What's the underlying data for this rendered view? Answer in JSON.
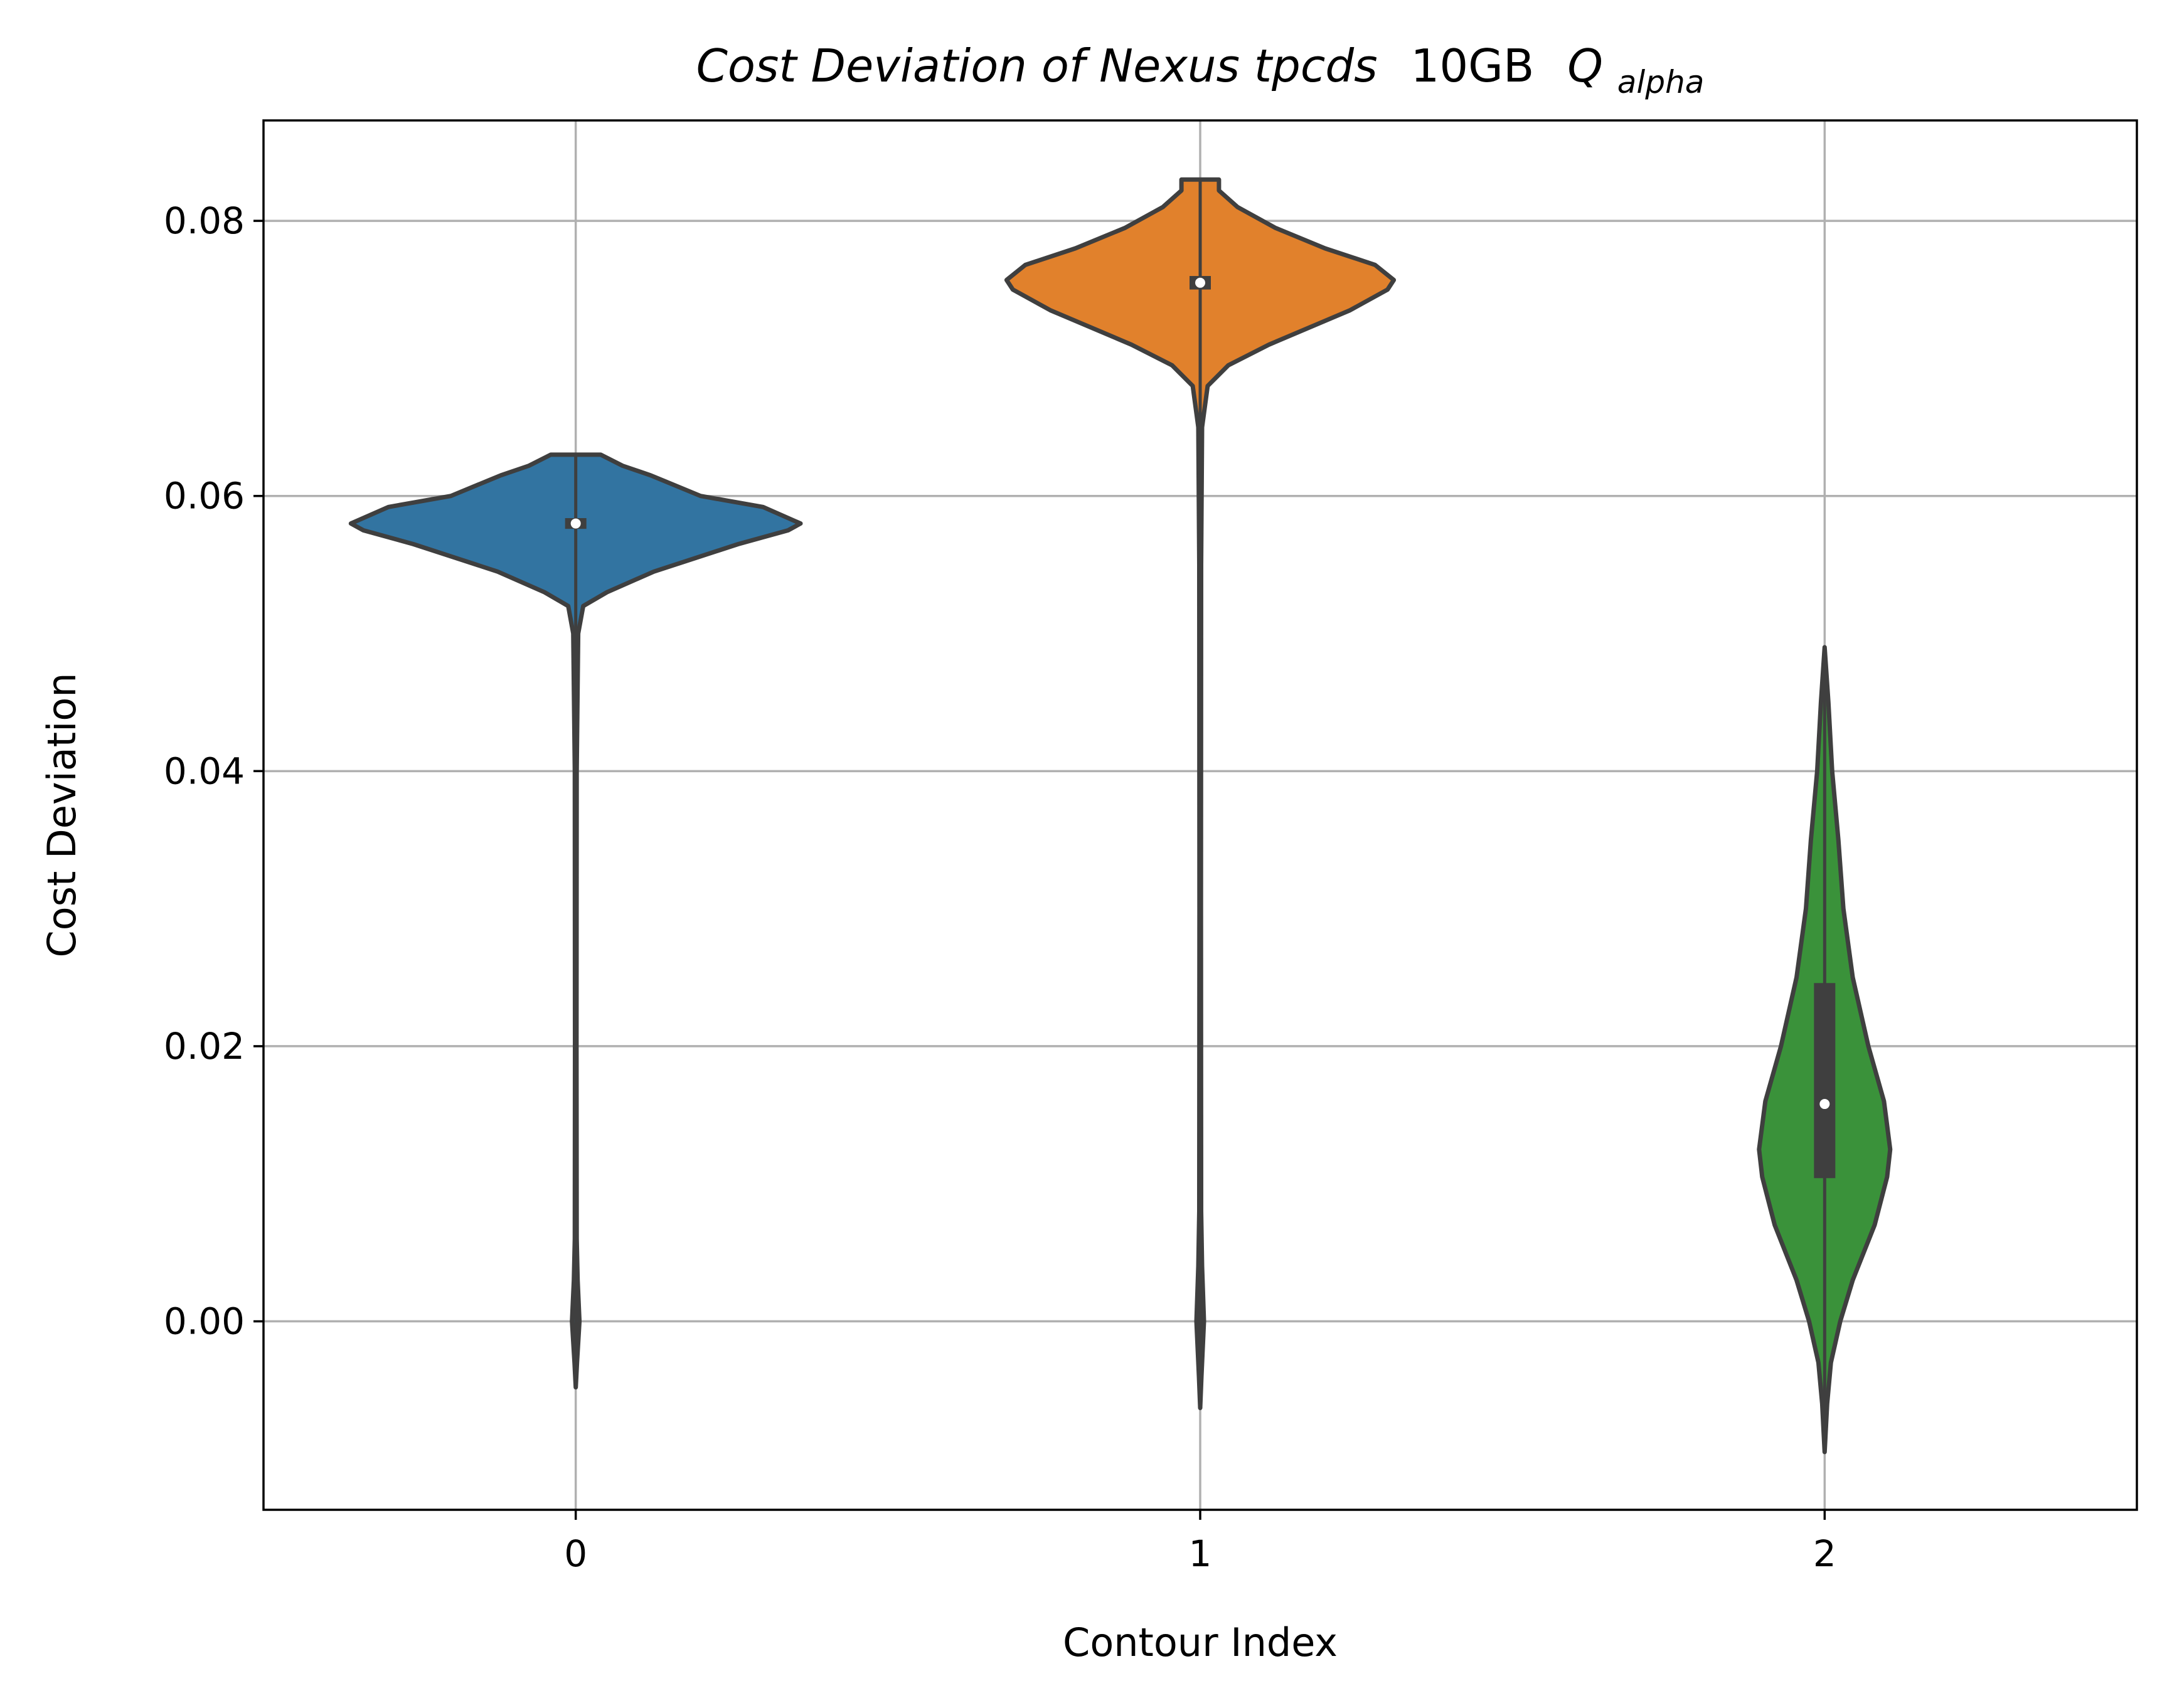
{
  "chart_data": {
    "type": "violin",
    "title": {
      "italic_part": "Cost Deviation of Nexus tpcds",
      "mid_part": "10GB",
      "symbol": "Q",
      "subscript": "alpha"
    },
    "xlabel": "Contour Index",
    "ylabel": "Cost Deviation",
    "categories": [
      "0",
      "1",
      "2"
    ],
    "x_range": [
      -0.5,
      2.5
    ],
    "ylim": [
      -0.0137,
      0.0873
    ],
    "yticks": [
      0.0,
      0.02,
      0.04,
      0.06,
      0.08
    ],
    "ytick_labels": [
      "0.00",
      "0.02",
      "0.04",
      "0.06",
      "0.08"
    ],
    "grid": true,
    "series": [
      {
        "name": "0",
        "color": "#3274a1",
        "median": 0.058,
        "q1": 0.0577,
        "q3": 0.0583,
        "min": -0.0048,
        "max": 0.063,
        "profile": [
          [
            -0.0048,
            0.0
          ],
          [
            -0.003,
            0.002
          ],
          [
            0.0,
            0.006
          ],
          [
            0.003,
            0.003
          ],
          [
            0.006,
            0.0015
          ],
          [
            0.02,
            0.0012
          ],
          [
            0.04,
            0.0015
          ],
          [
            0.05,
            0.004
          ],
          [
            0.052,
            0.012
          ],
          [
            0.053,
            0.05
          ],
          [
            0.0545,
            0.125
          ],
          [
            0.0565,
            0.26
          ],
          [
            0.0575,
            0.34
          ],
          [
            0.058,
            0.36
          ],
          [
            0.0592,
            0.3
          ],
          [
            0.06,
            0.2
          ],
          [
            0.0615,
            0.12
          ],
          [
            0.0622,
            0.075
          ],
          [
            0.063,
            0.04
          ]
        ]
      },
      {
        "name": "1",
        "color": "#e1812c",
        "median": 0.0755,
        "q1": 0.0751,
        "q3": 0.0759,
        "min": -0.0063,
        "max": 0.083,
        "profile": [
          [
            -0.0063,
            0.0
          ],
          [
            -0.004,
            0.002
          ],
          [
            0.0,
            0.006
          ],
          [
            0.004,
            0.003
          ],
          [
            0.008,
            0.0015
          ],
          [
            0.03,
            0.0012
          ],
          [
            0.055,
            0.0015
          ],
          [
            0.065,
            0.003
          ],
          [
            0.068,
            0.012
          ],
          [
            0.0695,
            0.045
          ],
          [
            0.071,
            0.11
          ],
          [
            0.0735,
            0.24
          ],
          [
            0.075,
            0.3
          ],
          [
            0.0757,
            0.31
          ],
          [
            0.0768,
            0.28
          ],
          [
            0.078,
            0.2
          ],
          [
            0.0795,
            0.12
          ],
          [
            0.081,
            0.06
          ],
          [
            0.0822,
            0.03
          ],
          [
            0.083,
            0.03
          ]
        ]
      },
      {
        "name": "2",
        "color": "#3a923a",
        "median": 0.0158,
        "q1": 0.0105,
        "q3": 0.0245,
        "min": -0.0095,
        "max": 0.049,
        "profile": [
          [
            -0.0095,
            0.0
          ],
          [
            -0.006,
            0.004
          ],
          [
            -0.003,
            0.01
          ],
          [
            0.0,
            0.025
          ],
          [
            0.003,
            0.045
          ],
          [
            0.007,
            0.08
          ],
          [
            0.0105,
            0.1
          ],
          [
            0.0125,
            0.105
          ],
          [
            0.016,
            0.095
          ],
          [
            0.02,
            0.07
          ],
          [
            0.025,
            0.045
          ],
          [
            0.03,
            0.03
          ],
          [
            0.035,
            0.022
          ],
          [
            0.04,
            0.012
          ],
          [
            0.045,
            0.006
          ],
          [
            0.049,
            0.0
          ]
        ]
      }
    ]
  }
}
